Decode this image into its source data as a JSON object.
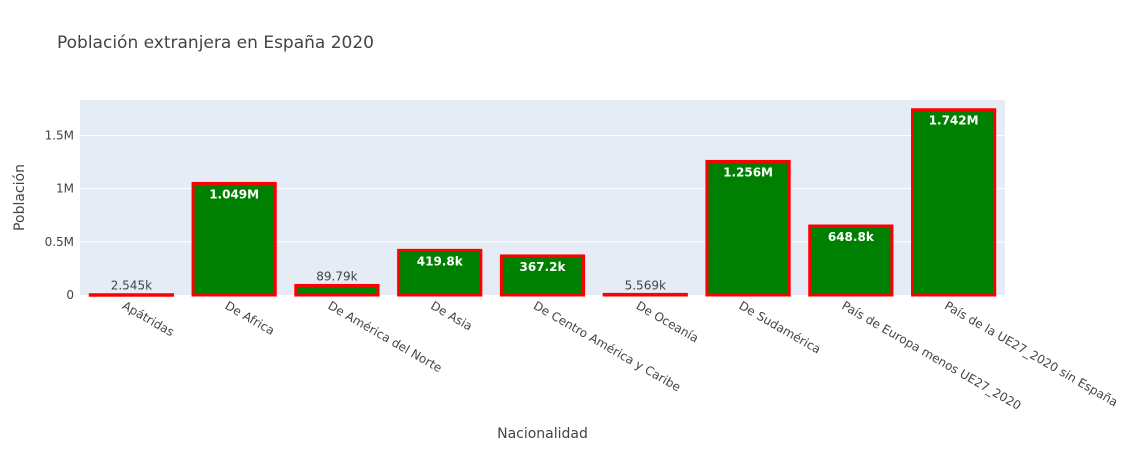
{
  "chart_data": {
    "type": "bar",
    "title": "Población extranjera en España 2020",
    "xlabel": "Nacionalidad",
    "ylabel": "Población",
    "categories": [
      "Apátridas",
      "De Africa",
      "De América del Norte",
      "De Asia",
      "De Centro América y Caribe",
      "De Oceanía",
      "De Sudamérica",
      "País de Europa menos UE27_2020",
      "País de la UE27_2020 sin España"
    ],
    "values": [
      2545,
      1049000,
      89790,
      419800,
      367200,
      5569,
      1256000,
      648800,
      1742000
    ],
    "data_labels": [
      "2.545k",
      "1.049M",
      "89.79k",
      "419.8k",
      "367.2k",
      "5.569k",
      "1.256M",
      "648.8k",
      "1.742M"
    ],
    "ylim": [
      0,
      1833684
    ],
    "yticks": [
      0,
      500000,
      1000000,
      1500000
    ],
    "ytick_labels": [
      "0",
      "0.5M",
      "1M",
      "1.5M"
    ],
    "grid": true,
    "bar_color": "#008000",
    "bar_border_color": "#ff0000",
    "plot_bg": "#e5ecf6",
    "inside_label_color": "#ffffff",
    "outside_label_color": "#444444"
  }
}
